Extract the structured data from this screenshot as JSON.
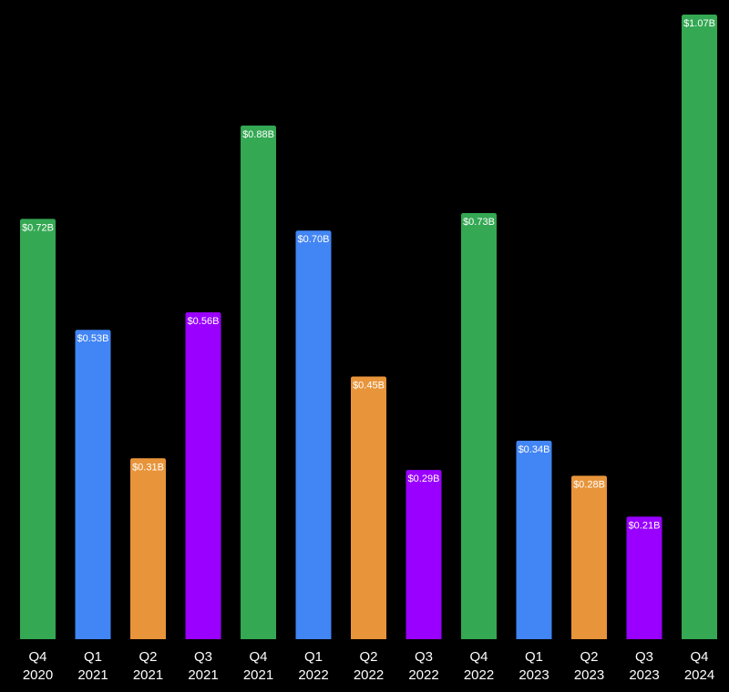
{
  "chart_data": {
    "type": "bar",
    "categories": [
      [
        "Q4",
        "2020"
      ],
      [
        "Q1",
        "2021"
      ],
      [
        "Q2",
        "2021"
      ],
      [
        "Q3",
        "2021"
      ],
      [
        "Q4",
        "2021"
      ],
      [
        "Q1",
        "2022"
      ],
      [
        "Q2",
        "2022"
      ],
      [
        "Q3",
        "2022"
      ],
      [
        "Q4",
        "2022"
      ],
      [
        "Q1",
        "2023"
      ],
      [
        "Q2",
        "2023"
      ],
      [
        "Q3",
        "2023"
      ],
      [
        "Q4",
        "2024"
      ]
    ],
    "values": [
      0.72,
      0.53,
      0.31,
      0.56,
      0.88,
      0.7,
      0.45,
      0.29,
      0.73,
      0.34,
      0.28,
      0.21,
      1.07
    ],
    "value_labels": [
      "$0.72B",
      "$0.53B",
      "$0.31B",
      "$0.56B",
      "$0.88B",
      "$0.70B",
      "$0.45B",
      "$0.29B",
      "$0.73B",
      "$0.34B",
      "$0.28B",
      "$0.21B",
      "$1.07B"
    ],
    "quarter_colors": {
      "Q1": "#4285F4",
      "Q2": "#E8943A",
      "Q3": "#9900FF",
      "Q4": "#34A853"
    },
    "label_color": "#FFFFFF",
    "background": "#000000",
    "ylim": [
      0,
      1.07
    ],
    "grid": false,
    "legend": "none",
    "title": "",
    "xlabel": "",
    "ylabel": ""
  }
}
